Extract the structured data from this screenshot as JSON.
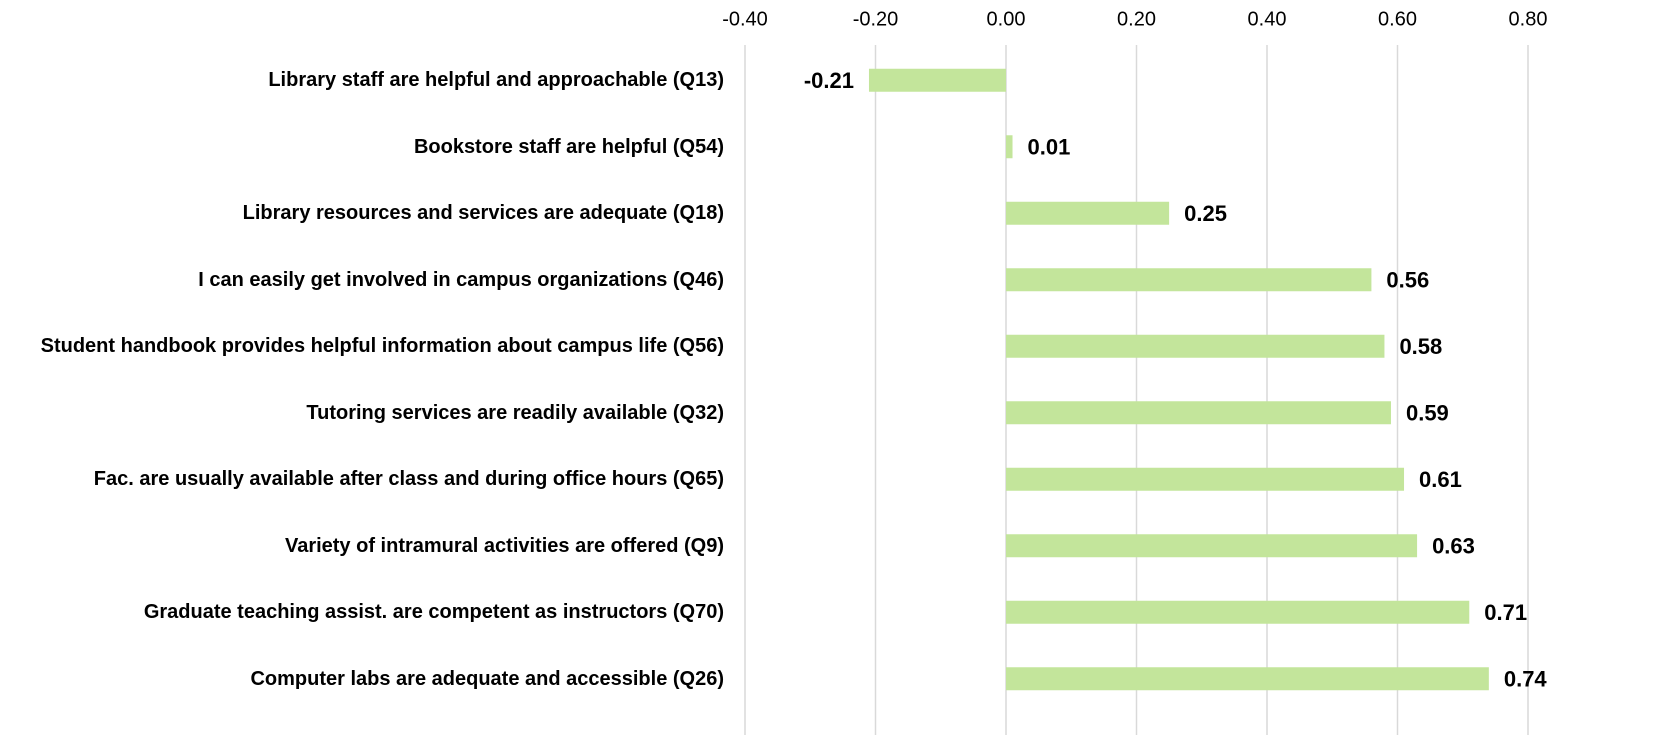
{
  "chart_data": {
    "type": "bar",
    "orientation": "horizontal",
    "categories": [
      "Library staff are helpful and approachable (Q13)",
      "Bookstore staff are helpful (Q54)",
      "Library resources and services are adequate (Q18)",
      "I can easily get involved in campus organizations (Q46)",
      "Student handbook provides helpful information about campus life (Q56)",
      "Tutoring services are readily available (Q32)",
      "Fac. are usually available after class and during office hours (Q65)",
      "Variety of intramural activities are offered (Q9)",
      "Graduate teaching assist. are competent as instructors (Q70)",
      "Computer labs are adequate and accessible (Q26)"
    ],
    "values": [
      -0.21,
      0.01,
      0.25,
      0.56,
      0.58,
      0.59,
      0.61,
      0.63,
      0.71,
      0.74
    ],
    "color": "#c3e59b",
    "xlim": [
      -0.4,
      0.8
    ],
    "xticks": [
      {
        "value": -0.4,
        "label": "-0.40"
      },
      {
        "value": -0.2,
        "label": "-0.20"
      },
      {
        "value": 0,
        "label": "0.00"
      },
      {
        "value": 0.2,
        "label": "0.20"
      },
      {
        "value": 0.4,
        "label": "0.40"
      },
      {
        "value": 0.6,
        "label": "0.60"
      },
      {
        "value": 0.8,
        "label": "0.80"
      }
    ],
    "grid": true
  }
}
